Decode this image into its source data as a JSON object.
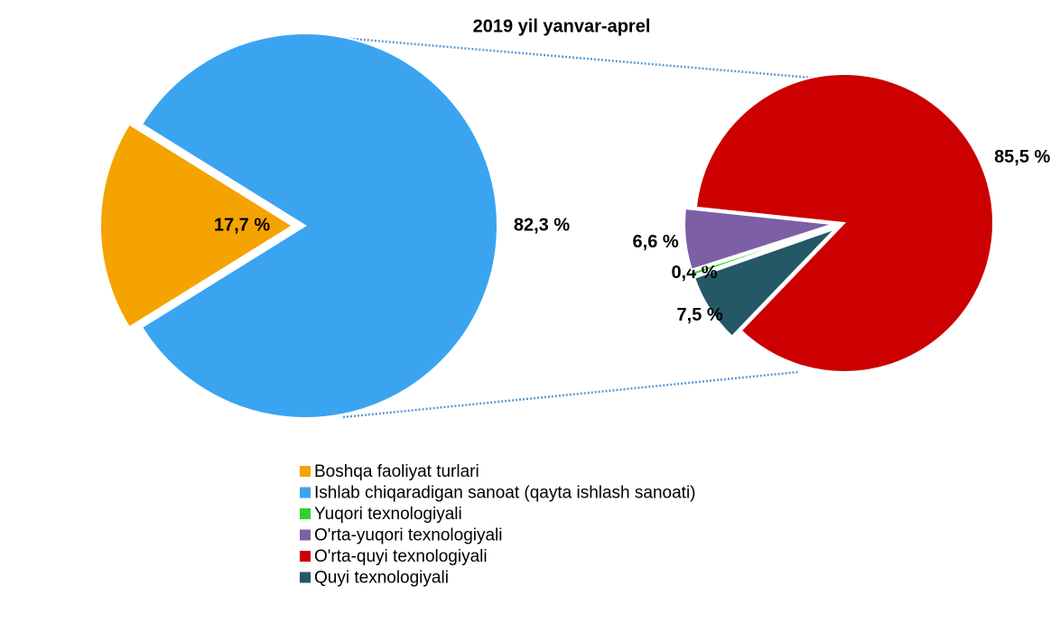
{
  "chart_data": {
    "type": "pie-of-pie",
    "title": "2019 yil yanvar-aprel",
    "pies": [
      {
        "categories": [
          "Boshqa faoliyat turlari",
          "Ishlab chiqaradigan sanoat (qayta ishlash sanoati)"
        ],
        "values": [
          17.7,
          82.3
        ],
        "value_labels": [
          "17,7 %",
          "82,3 %"
        ],
        "colors": [
          "#f5a300",
          "#3ba4f0"
        ]
      },
      {
        "categories": [
          "Yuqori texnologiyali",
          "O'rta-yuqori texnologiyali",
          "O'rta-quyi texnologiyali",
          "Quyi texnologiyali"
        ],
        "values": [
          0.4,
          6.6,
          85.5,
          7.5
        ],
        "value_labels": [
          "0,4 %",
          "6,6 %",
          "85,5 %",
          "7,5 %"
        ],
        "colors": [
          "#2ed12e",
          "#7d5fa6",
          "#cc0000",
          "#245866"
        ]
      }
    ],
    "legend": true
  }
}
